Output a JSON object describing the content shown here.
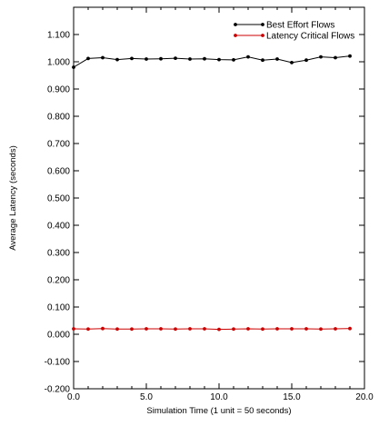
{
  "chart_data": {
    "type": "line",
    "title": "",
    "xlabel": "Simulation Time (1 unit = 50 seconds)",
    "ylabel": "Average Latency (seconds)",
    "xlim": [
      0,
      20
    ],
    "ylim": [
      -0.2,
      1.2
    ],
    "x_ticks": [
      0,
      5,
      10,
      15,
      20
    ],
    "x_tick_labels": [
      "0.0",
      "5.0",
      "10.0",
      "15.0",
      "20.0"
    ],
    "x_minor_step": 1,
    "y_ticks": [
      -0.2,
      -0.1,
      0.0,
      0.1,
      0.2,
      0.3,
      0.4,
      0.5,
      0.6,
      0.7,
      0.8,
      0.9,
      1.0,
      1.1
    ],
    "y_tick_labels": [
      "-0.200",
      "-0.100",
      "0.000",
      "0.100",
      "0.200",
      "0.300",
      "0.400",
      "0.500",
      "0.600",
      "0.700",
      "0.800",
      "0.900",
      "1.000",
      "1.100"
    ],
    "grid": false,
    "legend_position": "top-right",
    "x": [
      0,
      1,
      2,
      3,
      4,
      5,
      6,
      7,
      8,
      9,
      10,
      11,
      12,
      13,
      14,
      15,
      16,
      17,
      18,
      19
    ],
    "series": [
      {
        "name": "Best Effort Flows",
        "color": "#000000",
        "marker": "circle",
        "values": [
          0.98,
          1.012,
          1.015,
          1.008,
          1.012,
          1.01,
          1.011,
          1.013,
          1.01,
          1.011,
          1.008,
          1.007,
          1.018,
          1.006,
          1.01,
          0.997,
          1.006,
          1.018,
          1.015,
          1.021
        ]
      },
      {
        "name": "Latency Critical Flows",
        "color": "#cc0000",
        "marker": "circle",
        "values": [
          0.02,
          0.019,
          0.021,
          0.019,
          0.019,
          0.02,
          0.02,
          0.019,
          0.02,
          0.02,
          0.018,
          0.019,
          0.02,
          0.019,
          0.02,
          0.02,
          0.02,
          0.019,
          0.02,
          0.021
        ]
      }
    ]
  }
}
